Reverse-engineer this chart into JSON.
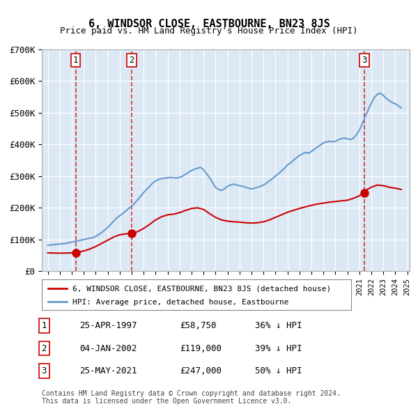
{
  "title": "6, WINDSOR CLOSE, EASTBOURNE, BN23 8JS",
  "subtitle": "Price paid vs. HM Land Registry's House Price Index (HPI)",
  "ylabel": "",
  "ylim": [
    0,
    700000
  ],
  "yticks": [
    0,
    100000,
    200000,
    300000,
    400000,
    500000,
    600000,
    700000
  ],
  "ytick_labels": [
    "£0",
    "£100K",
    "£200K",
    "£300K",
    "£400K",
    "£500K",
    "£600K",
    "£700K"
  ],
  "background_color": "#dce9f5",
  "plot_bg_color": "#dce9f5",
  "grid_color": "#ffffff",
  "red_line_color": "#cc0000",
  "blue_line_color": "#6699cc",
  "sale_dates": [
    1997.32,
    2002.01,
    2021.4
  ],
  "sale_prices": [
    58750,
    119000,
    247000
  ],
  "sale_labels": [
    "1",
    "2",
    "3"
  ],
  "legend_red_label": "6, WINDSOR CLOSE, EASTBOURNE, BN23 8JS (detached house)",
  "legend_blue_label": "HPI: Average price, detached house, Eastbourne",
  "table_rows": [
    [
      "1",
      "25-APR-1997",
      "£58,750",
      "36% ↓ HPI"
    ],
    [
      "2",
      "04-JAN-2002",
      "£119,000",
      "39% ↓ HPI"
    ],
    [
      "3",
      "25-MAY-2021",
      "£247,000",
      "50% ↓ HPI"
    ]
  ],
  "footer_text": "Contains HM Land Registry data © Crown copyright and database right 2024.\nThis data is licensed under the Open Government Licence v3.0.",
  "hpi_years": [
    1995.0,
    1995.25,
    1995.5,
    1995.75,
    1996.0,
    1996.25,
    1996.5,
    1996.75,
    1997.0,
    1997.25,
    1997.5,
    1997.75,
    1998.0,
    1998.25,
    1998.5,
    1998.75,
    1999.0,
    1999.25,
    1999.5,
    1999.75,
    2000.0,
    2000.25,
    2000.5,
    2000.75,
    2001.0,
    2001.25,
    2001.5,
    2001.75,
    2002.0,
    2002.25,
    2002.5,
    2002.75,
    2003.0,
    2003.25,
    2003.5,
    2003.75,
    2004.0,
    2004.25,
    2004.5,
    2004.75,
    2005.0,
    2005.25,
    2005.5,
    2005.75,
    2006.0,
    2006.25,
    2006.5,
    2006.75,
    2007.0,
    2007.25,
    2007.5,
    2007.75,
    2008.0,
    2008.25,
    2008.5,
    2008.75,
    2009.0,
    2009.25,
    2009.5,
    2009.75,
    2010.0,
    2010.25,
    2010.5,
    2010.75,
    2011.0,
    2011.25,
    2011.5,
    2011.75,
    2012.0,
    2012.25,
    2012.5,
    2012.75,
    2013.0,
    2013.25,
    2013.5,
    2013.75,
    2014.0,
    2014.25,
    2014.5,
    2014.75,
    2015.0,
    2015.25,
    2015.5,
    2015.75,
    2016.0,
    2016.25,
    2016.5,
    2016.75,
    2017.0,
    2017.25,
    2017.5,
    2017.75,
    2018.0,
    2018.25,
    2018.5,
    2018.75,
    2019.0,
    2019.25,
    2019.5,
    2019.75,
    2020.0,
    2020.25,
    2020.5,
    2020.75,
    2021.0,
    2021.25,
    2021.5,
    2021.75,
    2022.0,
    2022.25,
    2022.5,
    2022.75,
    2023.0,
    2023.25,
    2023.5,
    2023.75,
    2024.0,
    2024.25,
    2024.5
  ],
  "hpi_values": [
    82000,
    83000,
    84000,
    85000,
    86000,
    87000,
    88000,
    90000,
    92000,
    94000,
    96000,
    98000,
    100000,
    102000,
    104000,
    106000,
    110000,
    116000,
    122000,
    130000,
    138000,
    148000,
    158000,
    168000,
    175000,
    182000,
    190000,
    198000,
    205000,
    215000,
    225000,
    237000,
    248000,
    258000,
    268000,
    278000,
    285000,
    290000,
    292000,
    294000,
    295000,
    296000,
    295000,
    294000,
    296000,
    300000,
    306000,
    312000,
    318000,
    322000,
    325000,
    328000,
    320000,
    308000,
    295000,
    280000,
    265000,
    258000,
    255000,
    260000,
    268000,
    272000,
    275000,
    272000,
    270000,
    268000,
    265000,
    262000,
    260000,
    262000,
    265000,
    268000,
    272000,
    278000,
    285000,
    292000,
    300000,
    308000,
    316000,
    325000,
    335000,
    342000,
    350000,
    358000,
    365000,
    370000,
    375000,
    372000,
    378000,
    385000,
    392000,
    398000,
    405000,
    408000,
    410000,
    408000,
    410000,
    415000,
    418000,
    420000,
    418000,
    415000,
    420000,
    430000,
    445000,
    465000,
    488000,
    510000,
    530000,
    548000,
    558000,
    562000,
    555000,
    545000,
    538000,
    532000,
    528000,
    522000,
    515000
  ],
  "red_years": [
    1995.0,
    1995.5,
    1996.0,
    1996.5,
    1997.0,
    1997.32,
    1997.5,
    1998.0,
    1998.5,
    1999.0,
    1999.5,
    2000.0,
    2000.5,
    2001.0,
    2001.5,
    2002.01,
    2002.5,
    2003.0,
    2003.5,
    2004.0,
    2004.5,
    2005.0,
    2005.5,
    2006.0,
    2006.5,
    2007.0,
    2007.5,
    2008.0,
    2008.5,
    2009.0,
    2009.5,
    2010.0,
    2010.5,
    2011.0,
    2011.5,
    2012.0,
    2012.5,
    2013.0,
    2013.5,
    2014.0,
    2014.5,
    2015.0,
    2015.5,
    2016.0,
    2016.5,
    2017.0,
    2017.5,
    2018.0,
    2018.5,
    2019.0,
    2019.5,
    2020.0,
    2020.5,
    2021.0,
    2021.4,
    2021.5,
    2022.0,
    2022.5,
    2023.0,
    2023.5,
    2024.0,
    2024.5
  ],
  "red_values": [
    58000,
    57500,
    57000,
    57500,
    58000,
    58750,
    60000,
    64000,
    70000,
    78000,
    88000,
    98000,
    108000,
    115000,
    118000,
    119000,
    125000,
    135000,
    148000,
    162000,
    172000,
    178000,
    180000,
    185000,
    192000,
    198000,
    200000,
    195000,
    182000,
    170000,
    162000,
    158000,
    156000,
    155000,
    153000,
    152000,
    153000,
    156000,
    162000,
    170000,
    178000,
    186000,
    192000,
    198000,
    203000,
    208000,
    212000,
    215000,
    218000,
    220000,
    222000,
    224000,
    230000,
    238000,
    247000,
    255000,
    265000,
    272000,
    270000,
    265000,
    262000,
    258000
  ]
}
